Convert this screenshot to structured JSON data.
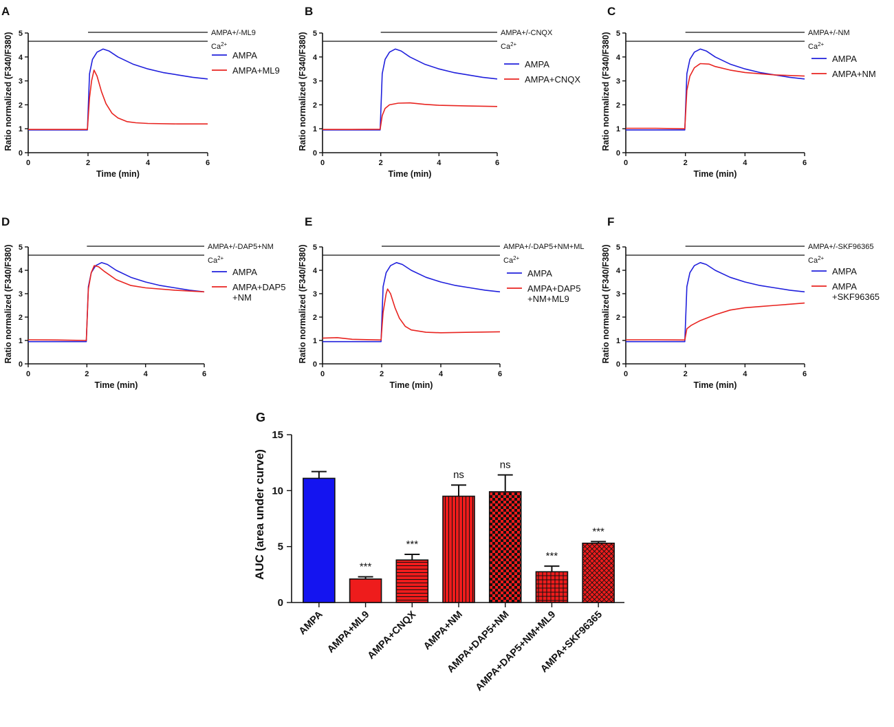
{
  "colors": {
    "ampa": "#1f1fdc",
    "treatment": "#e8231f",
    "bar_blue": "#1414f0",
    "bar_red": "#ee1c1c",
    "axis": "#111111"
  },
  "chart_data": [
    {
      "id": "A",
      "type": "line",
      "letter": "A",
      "xlabel": "Time (min)",
      "ylabel": "Ratio normalized (F340/F380)",
      "xlim": [
        0,
        6
      ],
      "ylim": [
        0,
        5
      ],
      "xticks": [
        0,
        2,
        4,
        6
      ],
      "yticks": [
        0,
        1,
        2,
        3,
        4,
        5
      ],
      "drug_bar_label": "AMPA+/-ML9",
      "drug_bar_start": 2,
      "ca_bar_label": "Ca",
      "ca_sup": "2+",
      "series": [
        {
          "name": "AMPA",
          "color_key": "ampa",
          "points": [
            [
              0,
              0.95
            ],
            [
              1,
              0.95
            ],
            [
              1.98,
              0.95
            ],
            [
              2.05,
              3.3
            ],
            [
              2.15,
              3.9
            ],
            [
              2.3,
              4.2
            ],
            [
              2.5,
              4.33
            ],
            [
              2.7,
              4.25
            ],
            [
              3,
              4.0
            ],
            [
              3.5,
              3.7
            ],
            [
              4,
              3.5
            ],
            [
              4.5,
              3.35
            ],
            [
              5,
              3.25
            ],
            [
              5.5,
              3.15
            ],
            [
              6,
              3.08
            ]
          ]
        },
        {
          "name": "AMPA+ML9",
          "color_key": "treatment",
          "points": [
            [
              0,
              0.97
            ],
            [
              1,
              0.97
            ],
            [
              1.98,
              0.97
            ],
            [
              2.05,
              2.3
            ],
            [
              2.12,
              3.0
            ],
            [
              2.2,
              3.45
            ],
            [
              2.3,
              3.2
            ],
            [
              2.45,
              2.55
            ],
            [
              2.6,
              2.05
            ],
            [
              2.8,
              1.65
            ],
            [
              3,
              1.45
            ],
            [
              3.3,
              1.3
            ],
            [
              3.6,
              1.25
            ],
            [
              4,
              1.22
            ],
            [
              5,
              1.2
            ],
            [
              6,
              1.2
            ]
          ]
        }
      ]
    },
    {
      "id": "B",
      "type": "line",
      "letter": "B",
      "xlabel": "Time (min)",
      "ylabel": "Ratio normalized (F340/F380)",
      "xlim": [
        0,
        6
      ],
      "ylim": [
        0,
        5
      ],
      "xticks": [
        0,
        2,
        4,
        6
      ],
      "yticks": [
        0,
        1,
        2,
        3,
        4,
        5
      ],
      "drug_bar_label": "AMPA+/-CNQX",
      "drug_bar_start": 2,
      "ca_bar_label": "Ca",
      "ca_sup": "2+",
      "series": [
        {
          "name": "AMPA",
          "color_key": "ampa",
          "points": [
            [
              0,
              0.95
            ],
            [
              1,
              0.95
            ],
            [
              1.98,
              0.95
            ],
            [
              2.05,
              3.3
            ],
            [
              2.15,
              3.9
            ],
            [
              2.3,
              4.2
            ],
            [
              2.5,
              4.33
            ],
            [
              2.7,
              4.25
            ],
            [
              3,
              4.0
            ],
            [
              3.5,
              3.7
            ],
            [
              4,
              3.5
            ],
            [
              4.5,
              3.35
            ],
            [
              5,
              3.25
            ],
            [
              5.5,
              3.15
            ],
            [
              6,
              3.08
            ]
          ]
        },
        {
          "name": "AMPA+CNQX",
          "color_key": "treatment",
          "points": [
            [
              0,
              0.97
            ],
            [
              1,
              0.97
            ],
            [
              1.98,
              0.98
            ],
            [
              2.05,
              1.55
            ],
            [
              2.15,
              1.85
            ],
            [
              2.3,
              2.0
            ],
            [
              2.6,
              2.07
            ],
            [
              3,
              2.08
            ],
            [
              3.5,
              2.02
            ],
            [
              4,
              1.98
            ],
            [
              5,
              1.95
            ],
            [
              6,
              1.93
            ]
          ]
        }
      ]
    },
    {
      "id": "C",
      "type": "line",
      "letter": "C",
      "xlabel": "Time (min)",
      "ylabel": "Ratio normalized (F340/F380)",
      "xlim": [
        0,
        6
      ],
      "ylim": [
        0,
        5
      ],
      "xticks": [
        0,
        2,
        4,
        6
      ],
      "yticks": [
        0,
        1,
        2,
        3,
        4,
        5
      ],
      "drug_bar_label": "AMPA+/-NM",
      "drug_bar_start": 2,
      "ca_bar_label": "Ca",
      "ca_sup": "2+",
      "series": [
        {
          "name": "AMPA",
          "color_key": "ampa",
          "points": [
            [
              0,
              0.95
            ],
            [
              1,
              0.95
            ],
            [
              1.98,
              0.95
            ],
            [
              2.05,
              3.3
            ],
            [
              2.15,
              3.9
            ],
            [
              2.3,
              4.2
            ],
            [
              2.5,
              4.33
            ],
            [
              2.7,
              4.25
            ],
            [
              3,
              4.0
            ],
            [
              3.5,
              3.7
            ],
            [
              4,
              3.5
            ],
            [
              4.5,
              3.35
            ],
            [
              5,
              3.25
            ],
            [
              5.5,
              3.15
            ],
            [
              6,
              3.08
            ]
          ]
        },
        {
          "name": "AMPA+NM",
          "color_key": "treatment",
          "points": [
            [
              0,
              1.02
            ],
            [
              1,
              1.02
            ],
            [
              1.98,
              1.0
            ],
            [
              2.05,
              2.6
            ],
            [
              2.15,
              3.2
            ],
            [
              2.3,
              3.55
            ],
            [
              2.5,
              3.72
            ],
            [
              2.8,
              3.7
            ],
            [
              3,
              3.6
            ],
            [
              3.5,
              3.45
            ],
            [
              4,
              3.35
            ],
            [
              5,
              3.25
            ],
            [
              6,
              3.2
            ]
          ]
        }
      ]
    },
    {
      "id": "D",
      "type": "line",
      "letter": "D",
      "xlabel": "Time (min)",
      "ylabel": "Ratio normalized (F340/F380)",
      "xlim": [
        0,
        6
      ],
      "ylim": [
        0,
        5
      ],
      "xticks": [
        0,
        2,
        4,
        6
      ],
      "yticks": [
        0,
        1,
        2,
        3,
        4,
        5
      ],
      "drug_bar_label": "AMPA+/-DAP5+NM",
      "drug_bar_start": 2,
      "ca_bar_label": "Ca",
      "ca_sup": "2+",
      "series": [
        {
          "name": "AMPA",
          "color_key": "ampa",
          "points": [
            [
              0,
              0.95
            ],
            [
              1,
              0.95
            ],
            [
              1.98,
              0.95
            ],
            [
              2.05,
              3.3
            ],
            [
              2.15,
              3.9
            ],
            [
              2.3,
              4.2
            ],
            [
              2.5,
              4.33
            ],
            [
              2.7,
              4.25
            ],
            [
              3,
              4.0
            ],
            [
              3.5,
              3.7
            ],
            [
              4,
              3.5
            ],
            [
              4.5,
              3.35
            ],
            [
              5,
              3.25
            ],
            [
              5.5,
              3.15
            ],
            [
              6,
              3.08
            ]
          ]
        },
        {
          "name": "AMPA+DAP5\n+NM",
          "color_key": "treatment",
          "points": [
            [
              0,
              1.03
            ],
            [
              1,
              1.02
            ],
            [
              1.98,
              1.0
            ],
            [
              2.05,
              3.2
            ],
            [
              2.15,
              3.9
            ],
            [
              2.25,
              4.2
            ],
            [
              2.4,
              4.15
            ],
            [
              2.6,
              3.95
            ],
            [
              3,
              3.6
            ],
            [
              3.5,
              3.35
            ],
            [
              4,
              3.25
            ],
            [
              5,
              3.15
            ],
            [
              6,
              3.08
            ]
          ]
        }
      ]
    },
    {
      "id": "E",
      "type": "line",
      "letter": "E",
      "xlabel": "Time (min)",
      "ylabel": "Ratio normalized (F340/F380)",
      "xlim": [
        0,
        6
      ],
      "ylim": [
        0,
        5
      ],
      "xticks": [
        0,
        2,
        4,
        6
      ],
      "yticks": [
        0,
        1,
        2,
        3,
        4,
        5
      ],
      "drug_bar_label": "AMPA+/-DAP5+NM+ML",
      "drug_bar_start": 2,
      "ca_bar_label": "Ca",
      "ca_sup": "2+",
      "series": [
        {
          "name": "AMPA",
          "color_key": "ampa",
          "points": [
            [
              0,
              0.95
            ],
            [
              1,
              0.95
            ],
            [
              1.98,
              0.95
            ],
            [
              2.05,
              3.3
            ],
            [
              2.15,
              3.9
            ],
            [
              2.3,
              4.2
            ],
            [
              2.5,
              4.33
            ],
            [
              2.7,
              4.25
            ],
            [
              3,
              4.0
            ],
            [
              3.5,
              3.7
            ],
            [
              4,
              3.5
            ],
            [
              4.5,
              3.35
            ],
            [
              5,
              3.25
            ],
            [
              5.5,
              3.15
            ],
            [
              6,
              3.08
            ]
          ]
        },
        {
          "name": "AMPA+DAP5\n+NM+ML9",
          "color_key": "treatment",
          "points": [
            [
              0,
              1.1
            ],
            [
              0.5,
              1.12
            ],
            [
              1,
              1.05
            ],
            [
              1.98,
              1.02
            ],
            [
              2.05,
              2.2
            ],
            [
              2.15,
              3.0
            ],
            [
              2.2,
              3.2
            ],
            [
              2.3,
              3.0
            ],
            [
              2.45,
              2.4
            ],
            [
              2.6,
              1.95
            ],
            [
              2.8,
              1.6
            ],
            [
              3,
              1.45
            ],
            [
              3.5,
              1.35
            ],
            [
              4,
              1.33
            ],
            [
              5,
              1.35
            ],
            [
              6,
              1.37
            ]
          ]
        }
      ]
    },
    {
      "id": "F",
      "type": "line",
      "letter": "F",
      "xlabel": "Time (min)",
      "ylabel": "Ratio normalized (F340/F380)",
      "xlim": [
        0,
        6
      ],
      "ylim": [
        0,
        5
      ],
      "xticks": [
        0,
        2,
        4,
        6
      ],
      "yticks": [
        0,
        1,
        2,
        3,
        4,
        5
      ],
      "drug_bar_label": "AMPA+/-SKF96365",
      "drug_bar_start": 2,
      "ca_bar_label": "Ca",
      "ca_sup": "2+",
      "series": [
        {
          "name": "AMPA",
          "color_key": "ampa",
          "points": [
            [
              0,
              0.95
            ],
            [
              1,
              0.95
            ],
            [
              1.98,
              0.95
            ],
            [
              2.05,
              3.3
            ],
            [
              2.15,
              3.9
            ],
            [
              2.3,
              4.2
            ],
            [
              2.5,
              4.33
            ],
            [
              2.7,
              4.25
            ],
            [
              3,
              4.0
            ],
            [
              3.5,
              3.7
            ],
            [
              4,
              3.5
            ],
            [
              4.5,
              3.35
            ],
            [
              5,
              3.25
            ],
            [
              5.5,
              3.15
            ],
            [
              6,
              3.08
            ]
          ]
        },
        {
          "name": "AMPA\n+SKF96365",
          "color_key": "treatment",
          "points": [
            [
              0,
              1.03
            ],
            [
              1,
              1.03
            ],
            [
              1.98,
              1.02
            ],
            [
              2.05,
              1.5
            ],
            [
              2.2,
              1.65
            ],
            [
              2.5,
              1.85
            ],
            [
              3,
              2.1
            ],
            [
              3.5,
              2.3
            ],
            [
              4,
              2.4
            ],
            [
              4.5,
              2.45
            ],
            [
              5,
              2.5
            ],
            [
              5.5,
              2.55
            ],
            [
              6,
              2.6
            ]
          ]
        }
      ]
    },
    {
      "id": "G",
      "type": "bar",
      "letter": "G",
      "title": "",
      "xlabel": "",
      "ylabel": "AUC (area under curve)",
      "ylim": [
        0,
        15
      ],
      "yticks": [
        0,
        5,
        10,
        15
      ],
      "categories": [
        "AMPA",
        "AMPA+ML9",
        "AMPA+CNQX",
        "AMPA+NM",
        "AMPA+DAP5+NM",
        "AMPA+DAP5+NM+ML9",
        "AMPA+SKF96365"
      ],
      "values": [
        11.1,
        2.1,
        3.8,
        9.5,
        9.9,
        2.75,
        5.3
      ],
      "errors": [
        0.6,
        0.2,
        0.5,
        1.0,
        1.5,
        0.5,
        0.15
      ],
      "significance": [
        "",
        "***",
        "***",
        "ns",
        "ns",
        "***",
        "***"
      ],
      "patterns": [
        "blue-solid",
        "red-solid",
        "red-horizontal",
        "red-vertical",
        "red-checker",
        "red-grid",
        "red-diagonal-cross"
      ]
    }
  ]
}
